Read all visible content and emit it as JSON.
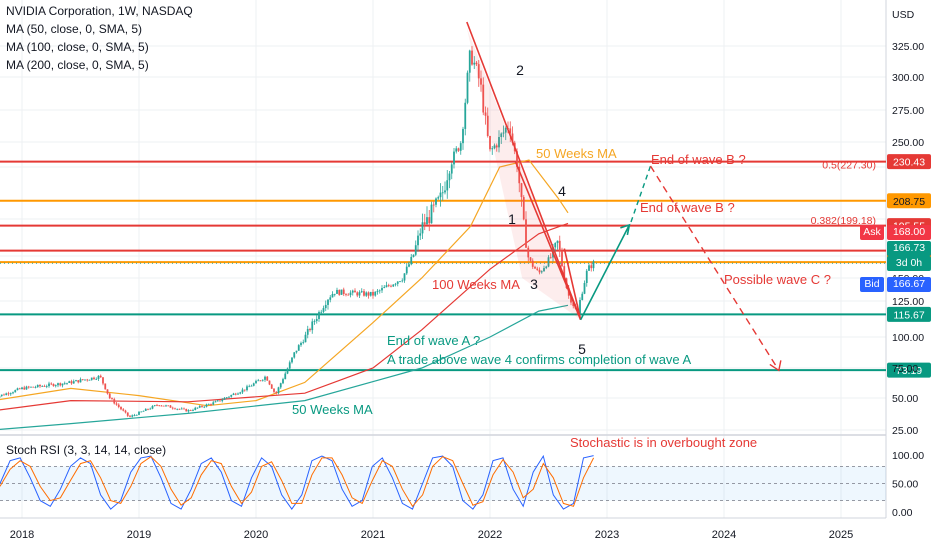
{
  "legend": {
    "title": "NVIDIA Corporation, 1W, NASDAQ",
    "ma50": "MA (50, close, 0, SMA, 5)",
    "ma100": "MA (100, close, 0, SMA, 5)",
    "ma200": "MA (200, close, 0, SMA, 5)"
  },
  "colors": {
    "up": "#26a69a",
    "down": "#ef5350",
    "ma50": "#f5a623",
    "ma100": "#e53935",
    "ma200": "#26a69a",
    "red_line": "#e53935",
    "orange_line": "#ff9800",
    "green_line": "#089981",
    "ask": "#f23645",
    "bid": "#2962ff",
    "annotation_red": "#e53935",
    "annotation_green": "#089981",
    "annotation_orange": "#f5a623"
  },
  "chart_data": [
    {
      "type": "candlestick",
      "title": "NVIDIA Corporation, 1W, NASDAQ",
      "y_axis_unit": "USD",
      "y_ticks": [
        25,
        50,
        75,
        100,
        125,
        150,
        175,
        200,
        225,
        250,
        275,
        300,
        325
      ],
      "y_tick_labels": [
        "25.00",
        "50.00",
        "75.00",
        "100.00",
        "125.00",
        "150.00",
        "175.00",
        "200.00",
        "225.00",
        "250.00",
        "275.00",
        "300.00",
        "325.00"
      ],
      "x_tick_labels": [
        "2018",
        "2019",
        "2020",
        "2021",
        "2022",
        "2023",
        "2024",
        "2025"
      ],
      "ylim": [
        25,
        355
      ],
      "close_path": [
        [
          "2017-10",
          50
        ],
        [
          "2018-01",
          58
        ],
        [
          "2018-06",
          63
        ],
        [
          "2018-09",
          68
        ],
        [
          "2018-10",
          50
        ],
        [
          "2018-12",
          35
        ],
        [
          "2019-03",
          45
        ],
        [
          "2019-06",
          40
        ],
        [
          "2019-09",
          47
        ],
        [
          "2019-12",
          58
        ],
        [
          "2020-02",
          68
        ],
        [
          "2020-03",
          53
        ],
        [
          "2020-05",
          88
        ],
        [
          "2020-09",
          135
        ],
        [
          "2021-01",
          132
        ],
        [
          "2021-04",
          150
        ],
        [
          "2021-06",
          195
        ],
        [
          "2021-08",
          210
        ],
        [
          "2021-10",
          250
        ],
        [
          "2021-11",
          320
        ],
        [
          "2021-12",
          295
        ],
        [
          "2022-01",
          240
        ],
        [
          "2022-03",
          265
        ],
        [
          "2022-05",
          170
        ],
        [
          "2022-06",
          155
        ],
        [
          "2022-08",
          185
        ],
        [
          "2022-09",
          132
        ],
        [
          "2022-10",
          115
        ],
        [
          "2022-11",
          160
        ],
        [
          "2022-11-20",
          166.73
        ]
      ],
      "moving_averages": [
        {
          "name": "50 Weeks MA",
          "values": [
            [
              "2017-10",
              48
            ],
            [
              "2018-06",
              58
            ],
            [
              "2019-01",
              52
            ],
            [
              "2019-08",
              44
            ],
            [
              "2020-01",
              48
            ],
            [
              "2020-06",
              63
            ],
            [
              "2021-01",
              110
            ],
            [
              "2021-06",
              150
            ],
            [
              "2021-11",
              195
            ],
            [
              "2022-02",
              225
            ],
            [
              "2022-05",
              232
            ],
            [
              "2022-08",
              210
            ],
            [
              "2022-09",
              203
            ]
          ]
        },
        {
          "name": "100 Weeks MA",
          "values": [
            [
              "2017-10",
              40
            ],
            [
              "2018-06",
              48
            ],
            [
              "2019-06",
              47
            ],
            [
              "2020-06",
              54
            ],
            [
              "2021-01",
              75
            ],
            [
              "2021-06",
              105
            ],
            [
              "2022-01",
              160
            ],
            [
              "2022-06",
              190
            ],
            [
              "2022-09",
              197
            ]
          ]
        },
        {
          "name": "200 Weeks MA",
          "values": [
            [
              "2017-10",
              25
            ],
            [
              "2018-06",
              30
            ],
            [
              "2019-06",
              38
            ],
            [
              "2020-06",
              48
            ],
            [
              "2021-06",
              75
            ],
            [
              "2022-01",
              100
            ],
            [
              "2022-06",
              118
            ],
            [
              "2022-09",
              122
            ]
          ]
        }
      ],
      "horizontal_levels": [
        {
          "value": 230.43,
          "label": "230.43",
          "color": "red"
        },
        {
          "value": 208.75,
          "label": "208.75",
          "color": "orange"
        },
        {
          "value": 195.55,
          "label": "195.55",
          "color": "red"
        },
        {
          "value": 178.66,
          "label": "178.66",
          "color": "red"
        },
        {
          "value": 168.0,
          "label": "168.00",
          "color": "orange"
        },
        {
          "value": 115.67,
          "label": "115.67",
          "color": "green"
        },
        {
          "value": 73.19,
          "label": "73.19",
          "color": "green"
        }
      ],
      "price_labels": {
        "last": "166.73",
        "countdown": "3d 0h",
        "ask_label": "Ask",
        "ask_value": "168.00",
        "bid_label": "Bid",
        "bid_value": "166.67"
      },
      "fib_labels": [
        {
          "text": "0.5(227.30)",
          "value": 227.3
        },
        {
          "text": "0.382(199.18)",
          "value": 199.18
        }
      ],
      "wave_points": [
        {
          "label": "2",
          "date": "2021-11",
          "value": 340
        },
        {
          "label": "1",
          "date": "2022-03",
          "value": 195
        },
        {
          "label": "4",
          "date": "2022-08",
          "value": 210
        },
        {
          "label": "3",
          "date": "2022-06",
          "value": 146
        },
        {
          "label": "5",
          "date": "2022-10",
          "value": 100
        }
      ],
      "annotations": [
        {
          "text": "50 Weeks MA",
          "color": "orange"
        },
        {
          "text": "End of wave B ?",
          "color": "red"
        },
        {
          "text": "End of wave B ?",
          "color": "red"
        },
        {
          "text": "100 Weeks MA",
          "color": "red"
        },
        {
          "text": "Possible wave C ?",
          "color": "red"
        },
        {
          "text": "End of wave A ?",
          "color": "green"
        },
        {
          "text": "A trade above wave 4 confirms completion of wave A",
          "color": "green"
        },
        {
          "text": "50 Weeks MA",
          "color": "green"
        }
      ]
    },
    {
      "type": "line",
      "title": "Stoch RSI (3, 3, 14, 14, close)",
      "y_ticks": [
        0,
        50,
        100
      ],
      "y_tick_labels": [
        "0.00",
        "50.00",
        "100.00"
      ],
      "overbought": 80,
      "oversold": 20,
      "ylim": [
        -5,
        105
      ],
      "series": [
        {
          "name": "K",
          "values": [
            50,
            90,
            95,
            60,
            20,
            10,
            40,
            80,
            95,
            85,
            30,
            5,
            20,
            70,
            95,
            98,
            60,
            15,
            5,
            40,
            85,
            95,
            70,
            20,
            10,
            60,
            95,
            80,
            30,
            5,
            30,
            90,
            98,
            90,
            40,
            10,
            20,
            80,
            95,
            60,
            15,
            5,
            50,
            95,
            98,
            80,
            20,
            5,
            30,
            90,
            95,
            40,
            10,
            70,
            98,
            30,
            5,
            15,
            95,
            99
          ]
        },
        {
          "name": "D",
          "values": [
            45,
            75,
            90,
            80,
            45,
            20,
            25,
            55,
            85,
            90,
            60,
            20,
            15,
            45,
            85,
            97,
            80,
            40,
            12,
            25,
            65,
            90,
            85,
            45,
            15,
            35,
            80,
            88,
            55,
            15,
            15,
            65,
            95,
            95,
            65,
            25,
            15,
            55,
            90,
            80,
            40,
            10,
            30,
            80,
            97,
            90,
            50,
            12,
            18,
            65,
            92,
            70,
            25,
            40,
            85,
            60,
            15,
            10,
            60,
            95
          ]
        }
      ],
      "annotation": "Stochastic is in overbought zone"
    }
  ]
}
